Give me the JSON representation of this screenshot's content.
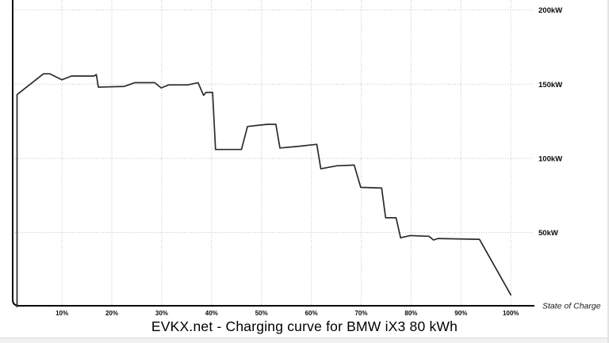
{
  "chart_data": {
    "type": "line",
    "title": "EVKX.net - Charging curve for BMW iX3 80 kWh",
    "xlabel": "State of Charge",
    "ylabel": "",
    "x_ticks": [
      "10%",
      "20%",
      "30%",
      "40%",
      "50%",
      "60%",
      "70%",
      "80%",
      "90%",
      "100%"
    ],
    "x_tick_values": [
      10,
      20,
      30,
      40,
      50,
      60,
      70,
      80,
      90,
      100
    ],
    "y_ticks": [
      "50kW",
      "100kW",
      "150kW",
      "200kW"
    ],
    "y_tick_values": [
      50,
      100,
      150,
      200
    ],
    "xlim": [
      0,
      104
    ],
    "ylim": [
      0,
      207
    ],
    "grid": true,
    "legend_position": "none",
    "line_color": "#2b2b2b",
    "grid_color": "#c4c4c4",
    "series": [
      {
        "name": "charging-power-kw",
        "x": [
          1,
          1,
          6.3,
          7.6,
          10,
          11.9,
          16.4,
          16.9,
          17.3,
          22.5,
          24.6,
          28.6,
          29.9,
          31.4,
          35.2,
          37.3,
          38.4,
          38.9,
          40.2,
          40.8,
          46,
          47.2,
          51.3,
          52.9,
          53.7,
          57,
          61.1,
          61.9,
          65.1,
          68.6,
          69.9,
          74.1,
          74.9,
          77,
          77.9,
          79.8,
          83.6,
          84.5,
          85.4,
          93.7,
          100
        ],
        "y": [
          0,
          143,
          157,
          157,
          153,
          155.5,
          155.5,
          156.5,
          148,
          148.5,
          151,
          151,
          147.5,
          149.5,
          149.5,
          151,
          142.5,
          144.5,
          144.5,
          106,
          106,
          121.5,
          123,
          123,
          107,
          108,
          109.5,
          93,
          95,
          95.5,
          80.5,
          80,
          60,
          60,
          46.5,
          48,
          47.5,
          45,
          46,
          45.5,
          8
        ]
      }
    ]
  }
}
